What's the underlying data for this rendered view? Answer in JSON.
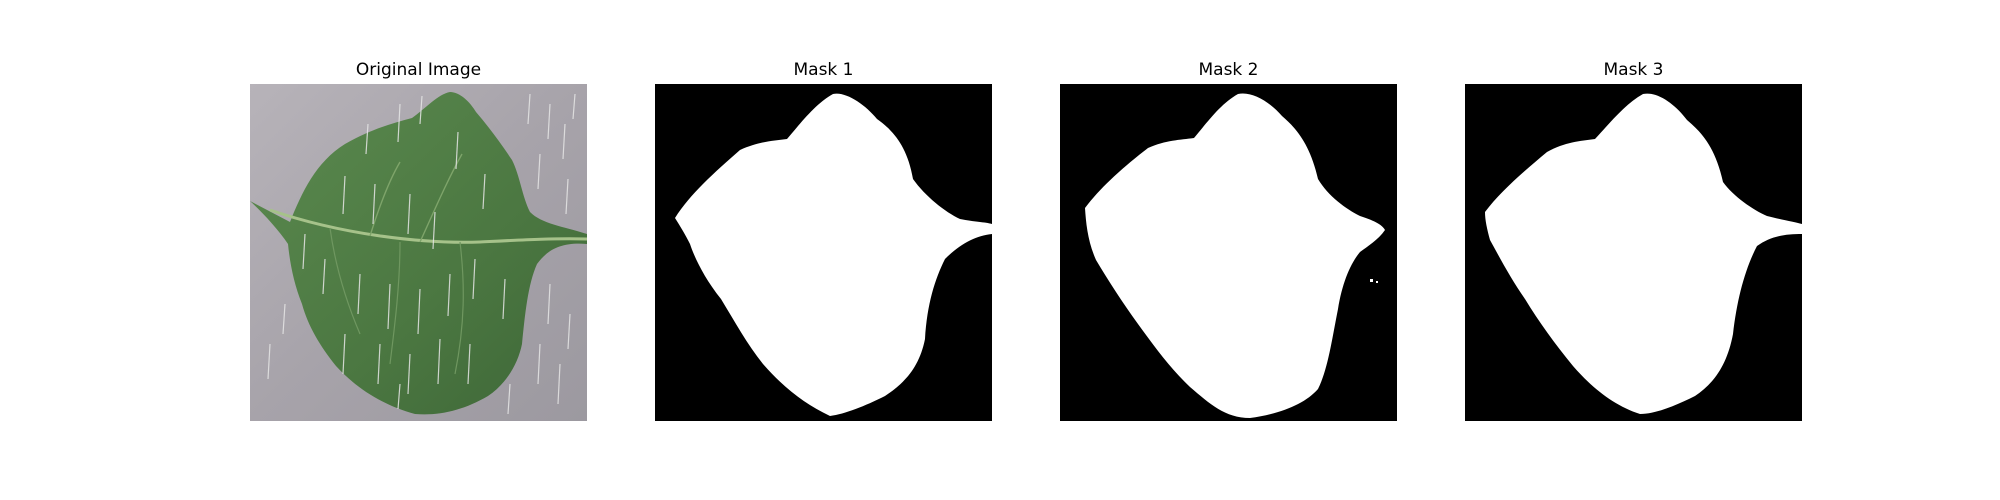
{
  "figure": {
    "panels": [
      {
        "title": "Original Image",
        "kind": "photo"
      },
      {
        "title": "Mask 1",
        "kind": "mask"
      },
      {
        "title": "Mask 2",
        "kind": "mask"
      },
      {
        "title": "Mask 3",
        "kind": "mask"
      }
    ]
  },
  "colors": {
    "background_surface": "#a9a5ab",
    "leaf_green": "#4f7a45",
    "leaf_vein": "#a6c28a",
    "rain_streak": "#e6e6e6",
    "mask_background": "#000000",
    "mask_foreground": "#ffffff"
  }
}
